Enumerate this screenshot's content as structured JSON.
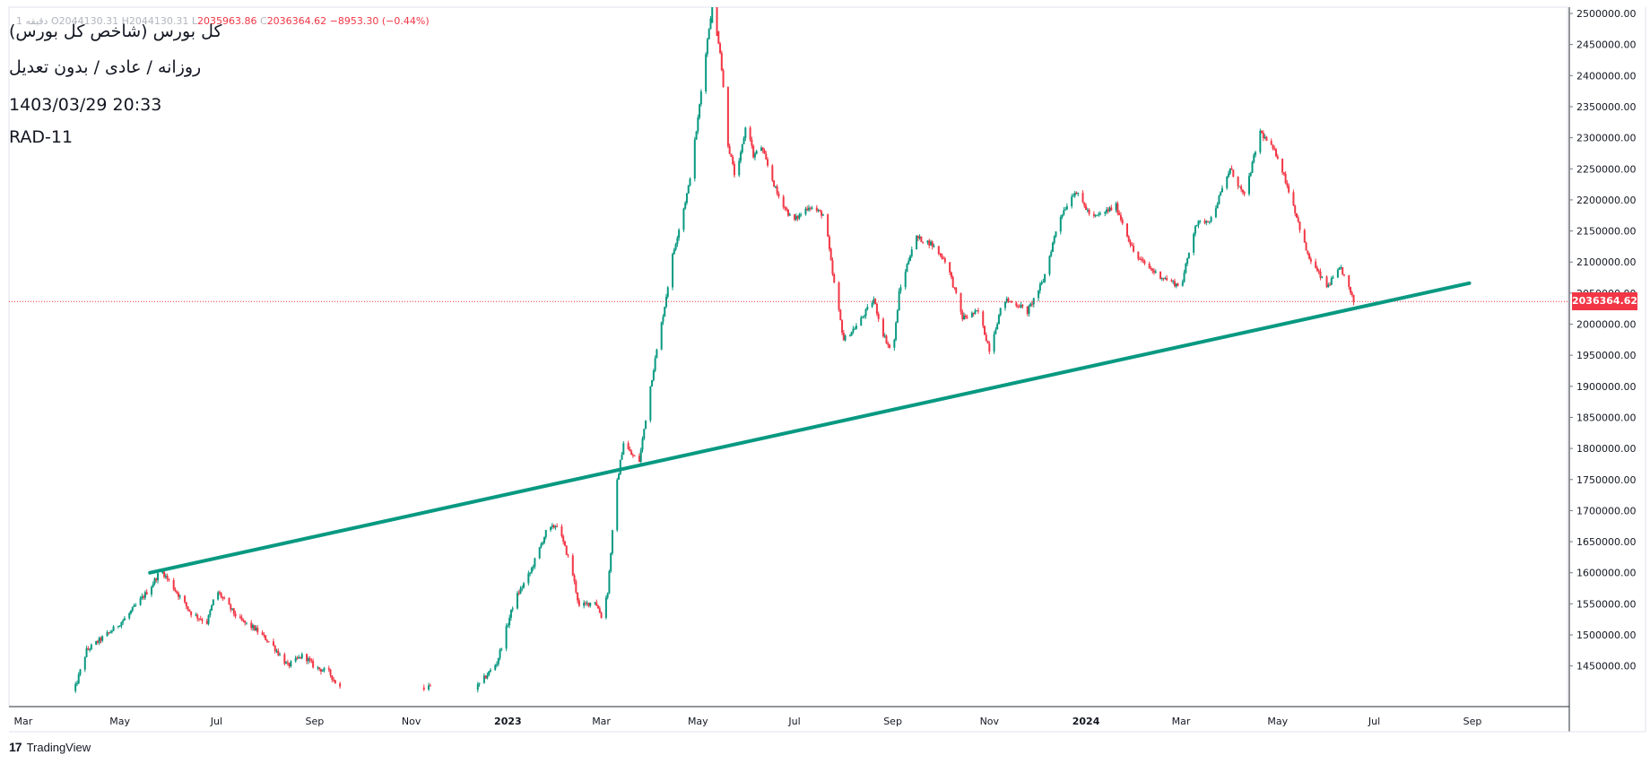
{
  "header": {
    "ohlc_prefix": "1 دقیقه",
    "open_label": "O",
    "open_value": "2044130.31",
    "high_label": "H",
    "high_value": "2044130.31",
    "low_label": "L",
    "low_value": "2035963.86",
    "close_label": "C",
    "close_value": "2036364.62",
    "change": "−8953.30 (−0.44%)"
  },
  "info": {
    "title": "کل بورس (شاخص کل بورس)",
    "subtitle": "روزانه / عادی / بدون تعدیل",
    "datetime": "1403/03/29 20:33",
    "code": "RAD-11"
  },
  "brand": {
    "logo": "17",
    "name": "TradingView"
  },
  "colors": {
    "up": "#089981",
    "down": "#f23645",
    "trendline": "#089981",
    "price_line": "#f23645"
  },
  "chart_data": {
    "type": "candlestick",
    "title": "",
    "xlabel": "",
    "ylabel": "",
    "ylim": [
      1400000,
      2520000
    ],
    "y_ticks": [
      1450000,
      1500000,
      1550000,
      1600000,
      1650000,
      1700000,
      1750000,
      1800000,
      1850000,
      1900000,
      1950000,
      2000000,
      2050000,
      2100000,
      2150000,
      2200000,
      2250000,
      2300000,
      2350000,
      2400000,
      2450000,
      2500000
    ],
    "y_tick_labels": [
      "1450000.00",
      "1500000.00",
      "1550000.00",
      "1600000.00",
      "1650000.00",
      "1700000.00",
      "1750000.00",
      "1800000.00",
      "1850000.00",
      "1900000.00",
      "1950000.00",
      "2000000.00",
      "2050000.00",
      "2100000.00",
      "2150000.00",
      "2200000.00",
      "2250000.00",
      "2300000.00",
      "2350000.00",
      "2400000.00",
      "2450000.00",
      "2500000.00"
    ],
    "x_range": [
      "2022-02-20",
      "2024-10-31"
    ],
    "x_ticks": [
      {
        "date": "2022-03-01",
        "label": "Mar"
      },
      {
        "date": "2022-05-01",
        "label": "May"
      },
      {
        "date": "2022-07-01",
        "label": "Jul"
      },
      {
        "date": "2022-09-01",
        "label": "Sep"
      },
      {
        "date": "2022-11-01",
        "label": "Nov"
      },
      {
        "date": "2023-01-01",
        "label": "2023"
      },
      {
        "date": "2023-03-01",
        "label": "Mar"
      },
      {
        "date": "2023-05-01",
        "label": "May"
      },
      {
        "date": "2023-07-01",
        "label": "Jul"
      },
      {
        "date": "2023-09-01",
        "label": "Sep"
      },
      {
        "date": "2023-11-01",
        "label": "Nov"
      },
      {
        "date": "2024-01-01",
        "label": "2024"
      },
      {
        "date": "2024-03-01",
        "label": "Mar"
      },
      {
        "date": "2024-05-01",
        "label": "May"
      },
      {
        "date": "2024-07-01",
        "label": "Jul"
      },
      {
        "date": "2024-09-01",
        "label": "Sep"
      }
    ],
    "series": [
      {
        "path": [
          {
            "date": "2022-04-01",
            "close": 1400000
          },
          {
            "date": "2022-04-10",
            "close": 1475000
          },
          {
            "date": "2022-04-25",
            "close": 1505000
          },
          {
            "date": "2022-05-05",
            "close": 1528000
          },
          {
            "date": "2022-05-20",
            "close": 1575000
          },
          {
            "date": "2022-05-27",
            "close": 1605000
          },
          {
            "date": "2022-06-05",
            "close": 1572000
          },
          {
            "date": "2022-06-15",
            "close": 1535000
          },
          {
            "date": "2022-06-25",
            "close": 1520000
          },
          {
            "date": "2022-07-01",
            "close": 1572000
          },
          {
            "date": "2022-07-15",
            "close": 1525000
          },
          {
            "date": "2022-07-25",
            "close": 1510000
          },
          {
            "date": "2022-08-05",
            "close": 1485000
          },
          {
            "date": "2022-08-15",
            "close": 1450000
          },
          {
            "date": "2022-08-25",
            "close": 1468000
          },
          {
            "date": "2022-09-01",
            "close": 1448000
          },
          {
            "date": "2022-09-10",
            "close": 1440000
          },
          {
            "date": "2022-09-15",
            "close": 1420000
          },
          {
            "date": "2022-09-25",
            "close": 1400000
          },
          {
            "date": "2022-10-31",
            "close": 1400000
          },
          {
            "date": "2022-11-10",
            "close": 1418000
          },
          {
            "date": "2022-11-20",
            "close": 1408000
          },
          {
            "date": "2022-12-01",
            "close": 1413000
          },
          {
            "date": "2022-12-10",
            "close": 1408000
          },
          {
            "date": "2022-12-25",
            "close": 1455000
          },
          {
            "date": "2023-01-05",
            "close": 1555000
          },
          {
            "date": "2023-01-15",
            "close": 1600000
          },
          {
            "date": "2023-01-25",
            "close": 1665000
          },
          {
            "date": "2023-02-01",
            "close": 1678000
          },
          {
            "date": "2023-02-10",
            "close": 1610000
          },
          {
            "date": "2023-02-15",
            "close": 1545000
          },
          {
            "date": "2023-02-25",
            "close": 1555000
          },
          {
            "date": "2023-03-01",
            "close": 1530000
          },
          {
            "date": "2023-03-05",
            "close": 1570000
          },
          {
            "date": "2023-03-08",
            "close": 1665000
          },
          {
            "date": "2023-03-10",
            "close": 1730000
          },
          {
            "date": "2023-03-15",
            "close": 1810000
          },
          {
            "date": "2023-03-20",
            "close": 1790000
          },
          {
            "date": "2023-03-25",
            "close": 1780000
          },
          {
            "date": "2023-04-01",
            "close": 1900000
          },
          {
            "date": "2023-04-10",
            "close": 2030000
          },
          {
            "date": "2023-04-15",
            "close": 2110000
          },
          {
            "date": "2023-04-25",
            "close": 2220000
          },
          {
            "date": "2023-05-01",
            "close": 2330000
          },
          {
            "date": "2023-05-05",
            "close": 2420000
          },
          {
            "date": "2023-05-10",
            "close": 2515000
          },
          {
            "date": "2023-05-15",
            "close": 2440000
          },
          {
            "date": "2023-05-20",
            "close": 2290000
          },
          {
            "date": "2023-05-25",
            "close": 2230000
          },
          {
            "date": "2023-06-01",
            "close": 2330000
          },
          {
            "date": "2023-06-05",
            "close": 2270000
          },
          {
            "date": "2023-06-10",
            "close": 2285000
          },
          {
            "date": "2023-06-20",
            "close": 2210000
          },
          {
            "date": "2023-06-30",
            "close": 2165000
          },
          {
            "date": "2023-07-10",
            "close": 2190000
          },
          {
            "date": "2023-07-20",
            "close": 2175000
          },
          {
            "date": "2023-07-25",
            "close": 2080000
          },
          {
            "date": "2023-08-01",
            "close": 1975000
          },
          {
            "date": "2023-08-10",
            "close": 2000000
          },
          {
            "date": "2023-08-20",
            "close": 2040000
          },
          {
            "date": "2023-08-25",
            "close": 1990000
          },
          {
            "date": "2023-09-01",
            "close": 1950000
          },
          {
            "date": "2023-09-05",
            "close": 2050000
          },
          {
            "date": "2023-09-15",
            "close": 2140000
          },
          {
            "date": "2023-09-25",
            "close": 2130000
          },
          {
            "date": "2023-10-05",
            "close": 2100000
          },
          {
            "date": "2023-10-15",
            "close": 2010000
          },
          {
            "date": "2023-10-25",
            "close": 2020000
          },
          {
            "date": "2023-11-01",
            "close": 1960000
          },
          {
            "date": "2023-11-10",
            "close": 2040000
          },
          {
            "date": "2023-11-20",
            "close": 2030000
          },
          {
            "date": "2023-11-25",
            "close": 2020000
          },
          {
            "date": "2023-12-05",
            "close": 2070000
          },
          {
            "date": "2023-12-15",
            "close": 2170000
          },
          {
            "date": "2023-12-25",
            "close": 2215000
          },
          {
            "date": "2024-01-05",
            "close": 2170000
          },
          {
            "date": "2024-01-20",
            "close": 2190000
          },
          {
            "date": "2024-02-01",
            "close": 2110000
          },
          {
            "date": "2024-02-15",
            "close": 2080000
          },
          {
            "date": "2024-03-01",
            "close": 2060000
          },
          {
            "date": "2024-03-10",
            "close": 2160000
          },
          {
            "date": "2024-03-20",
            "close": 2170000
          },
          {
            "date": "2024-04-01",
            "close": 2250000
          },
          {
            "date": "2024-04-10",
            "close": 2205000
          },
          {
            "date": "2024-04-20",
            "close": 2310000
          },
          {
            "date": "2024-05-01",
            "close": 2270000
          },
          {
            "date": "2024-05-10",
            "close": 2200000
          },
          {
            "date": "2024-05-20",
            "close": 2110000
          },
          {
            "date": "2024-06-01",
            "close": 2060000
          },
          {
            "date": "2024-06-10",
            "close": 2090000
          },
          {
            "date": "2024-06-18",
            "close": 2036364
          }
        ]
      }
    ],
    "trendline": {
      "from": {
        "date": "2022-05-20",
        "value": 1600000
      },
      "to": {
        "date": "2024-08-30",
        "value": 2066000
      }
    },
    "last_price": 2036364.62,
    "last_price_label": "2036364.62",
    "grid": false
  }
}
